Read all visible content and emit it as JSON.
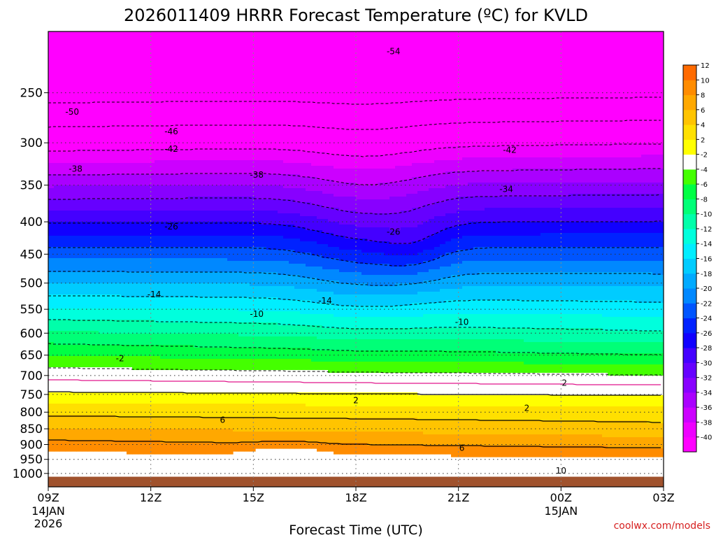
{
  "chart_data": {
    "type": "heatmap",
    "title": "2026011409 HRRR Forecast Temperature (ºC) for KVLD",
    "xlabel": "Forecast Time (UTC)",
    "ylabel": "",
    "credit": "coolwx.com/models",
    "x_ticks": [
      {
        "hour": 0,
        "label": "09Z",
        "sub": [
          "14JAN",
          "2026"
        ]
      },
      {
        "hour": 3,
        "label": "12Z",
        "sub": []
      },
      {
        "hour": 6,
        "label": "15Z",
        "sub": []
      },
      {
        "hour": 9,
        "label": "18Z",
        "sub": []
      },
      {
        "hour": 12,
        "label": "21Z",
        "sub": []
      },
      {
        "hour": 15,
        "label": "00Z",
        "sub": [
          "15JAN"
        ]
      },
      {
        "hour": 18,
        "label": "03Z",
        "sub": []
      }
    ],
    "y_ticks": [
      250,
      300,
      350,
      400,
      450,
      500,
      550,
      600,
      650,
      700,
      750,
      800,
      850,
      900,
      950,
      1000
    ],
    "y_labels": [
      "250",
      "300",
      "350",
      "400",
      "450",
      "500",
      "550",
      "600",
      "650",
      "700",
      "750",
      "800",
      "850",
      "900",
      "950",
      "1000"
    ],
    "xlim": [
      0,
      18
    ],
    "ylim_hPa": [
      1050,
      200
    ],
    "colorbar": {
      "levels": [
        -40,
        -38,
        -36,
        -34,
        -32,
        -30,
        -28,
        -26,
        -24,
        -22,
        -20,
        -18,
        -16,
        -14,
        -12,
        -10,
        -8,
        -6,
        -4,
        -2,
        2,
        4,
        6,
        8,
        10,
        12
      ],
      "labels": [
        "-40",
        "-38",
        "-36",
        "-34",
        "-32",
        "-30",
        "-28",
        "-26",
        "-24",
        "-22",
        "-20",
        "-18",
        "-16",
        "-14",
        "-12",
        "-10",
        "-8",
        "-6",
        "-4",
        "-2",
        "2",
        "4",
        "6",
        "8",
        "10",
        "12"
      ],
      "colors": [
        "#ff00ff",
        "#ee00ff",
        "#cc00ff",
        "#aa00ff",
        "#8800ff",
        "#6600ff",
        "#4400ff",
        "#1100ff",
        "#0022ff",
        "#0055ff",
        "#0088ff",
        "#00aaff",
        "#00ccff",
        "#00eeff",
        "#00ffdd",
        "#00ffaa",
        "#00ff77",
        "#00ff44",
        "#44ff00",
        "#ffffff",
        "#ffff00",
        "#ffe000",
        "#ffc400",
        "#ffa800",
        "#ff8c00",
        "#ff6a00"
      ]
    },
    "contour_labels": [
      {
        "text": "-54",
        "hour": 10.1,
        "hPa": 215
      },
      {
        "text": "-50",
        "hour": 0.7,
        "hPa": 268
      },
      {
        "text": "-46",
        "hour": 3.6,
        "hPa": 288
      },
      {
        "text": "-42",
        "hour": 3.6,
        "hPa": 307
      },
      {
        "text": "-42",
        "hour": 13.5,
        "hPa": 308
      },
      {
        "text": "-38",
        "hour": 0.8,
        "hPa": 330
      },
      {
        "text": "-38",
        "hour": 6.1,
        "hPa": 337
      },
      {
        "text": "-34",
        "hour": 13.4,
        "hPa": 355
      },
      {
        "text": "-26",
        "hour": 3.6,
        "hPa": 407
      },
      {
        "text": "-26",
        "hour": 10.1,
        "hPa": 415
      },
      {
        "text": "-14",
        "hour": 3.1,
        "hPa": 521
      },
      {
        "text": "-14",
        "hour": 8.1,
        "hPa": 533
      },
      {
        "text": "-10",
        "hour": 6.1,
        "hPa": 560
      },
      {
        "text": "-10",
        "hour": 12.1,
        "hPa": 576
      },
      {
        "text": "-2",
        "hour": 2.1,
        "hPa": 658
      },
      {
        "text": "2",
        "hour": 9.0,
        "hPa": 767
      },
      {
        "text": "2",
        "hour": 14.0,
        "hPa": 788
      },
      {
        "text": "2",
        "hour": 15.1,
        "hPa": 719
      },
      {
        "text": "6",
        "hour": 5.1,
        "hPa": 823
      },
      {
        "text": "6",
        "hour": 12.1,
        "hPa": 912
      },
      {
        "text": "10",
        "hour": 15.0,
        "hPa": 990
      }
    ],
    "ground_level_hPa": 1012
  }
}
